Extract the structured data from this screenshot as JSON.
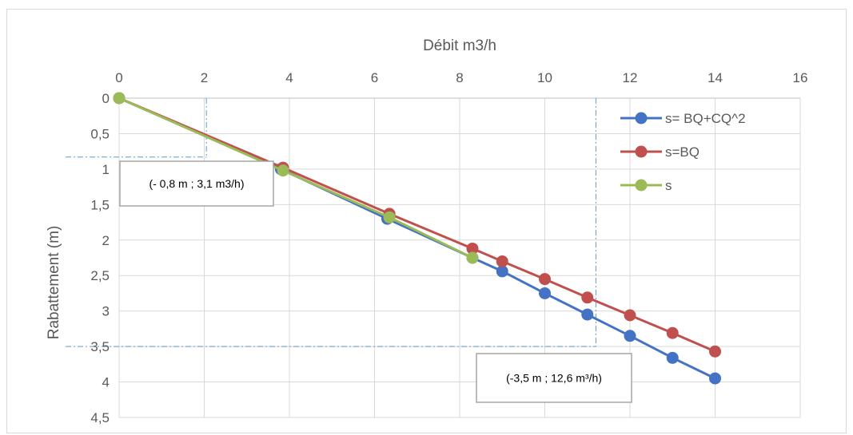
{
  "chart_data": {
    "type": "line",
    "title": "",
    "xlabel": "Débit m3/h",
    "ylabel": "Rabattement (m)",
    "x_axis_position": "top",
    "y_axis_inverted": true,
    "xlim": [
      0,
      16
    ],
    "ylim": [
      0,
      4.5
    ],
    "x_ticks": [
      0,
      2,
      4,
      6,
      8,
      10,
      12,
      14,
      16
    ],
    "x_tick_labels": [
      "0",
      "2",
      "4",
      "6",
      "8",
      "10",
      "12",
      "14",
      "16"
    ],
    "y_ticks": [
      0,
      0.5,
      1,
      1.5,
      2,
      2.5,
      3,
      3.5,
      4,
      4.5
    ],
    "y_tick_labels": [
      "0",
      "0,5",
      "1",
      "1,5",
      "2",
      "2,5",
      "3",
      "3,5",
      "4",
      "4,5"
    ],
    "grid": true,
    "legend_position": "right",
    "series": [
      {
        "name": "s= BQ+CQ^2",
        "color": "#4472C4",
        "points": [
          [
            0,
            0
          ],
          [
            3.8,
            1.0
          ],
          [
            6.3,
            1.7
          ],
          [
            8.3,
            2.25
          ],
          [
            9,
            2.44
          ],
          [
            10,
            2.75
          ],
          [
            11,
            3.05
          ],
          [
            12,
            3.35
          ],
          [
            13,
            3.66
          ],
          [
            14,
            3.95
          ]
        ]
      },
      {
        "name": "s=BQ",
        "color": "#C0504D",
        "points": [
          [
            0,
            0
          ],
          [
            3.85,
            0.98
          ],
          [
            6.35,
            1.63
          ],
          [
            8.3,
            2.12
          ],
          [
            9,
            2.3
          ],
          [
            10,
            2.55
          ],
          [
            11,
            2.81
          ],
          [
            12,
            3.06
          ],
          [
            13,
            3.31
          ],
          [
            14,
            3.57
          ]
        ]
      },
      {
        "name": "s",
        "color": "#9BBB59",
        "points": [
          [
            0,
            0
          ],
          [
            3.85,
            1.02
          ],
          [
            6.35,
            1.68
          ],
          [
            8.3,
            2.25
          ]
        ]
      }
    ],
    "reference_lines": [
      {
        "x": 2.05,
        "y": 0.83
      },
      {
        "x": 11.2,
        "y": 3.5
      }
    ],
    "annotations": [
      {
        "text": "(- 0,8 m ; 3,1 m3/h)"
      },
      {
        "text": "(-3,5 m ; 12,6 m³/h)"
      }
    ]
  }
}
